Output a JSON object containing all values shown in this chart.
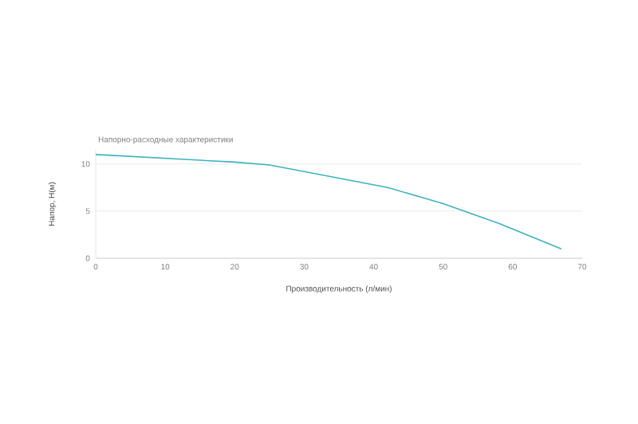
{
  "chart_data": {
    "type": "line",
    "title": "Напорно-расходные характеристики",
    "xlabel": "Производительность (л/мин)",
    "ylabel": "Напор, Н(м)",
    "x": [
      0,
      10,
      20,
      25,
      30,
      42,
      50,
      58,
      67
    ],
    "series": [
      {
        "color": "#3cb4bc",
        "values": [
          11,
          10.6,
          10.2,
          9.9,
          9.2,
          7.5,
          5.8,
          3.7,
          1.0
        ]
      }
    ],
    "xlim": [
      0,
      70
    ],
    "ylim": [
      0,
      11.5
    ],
    "xticks": [
      0,
      10,
      20,
      30,
      40,
      50,
      60,
      70
    ],
    "yticks": [
      0,
      5,
      10
    ],
    "grid": "y",
    "marker": "none",
    "line_style": "solid"
  }
}
